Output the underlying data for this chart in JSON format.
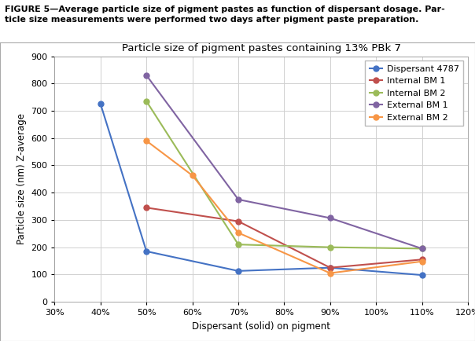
{
  "title": "Particle size of pigment pastes containing 13% PBk 7",
  "xlabel": "Dispersant (solid) on pigment",
  "ylabel": "Particle size (nm) Z-average",
  "caption_line1": "FIGURE 5—Average particle size of pigment pastes as function of dispersant dosage. Par-",
  "caption_line2": "ticle size measurements were performed two days after pigment paste preparation.",
  "xlim": [
    0.3,
    1.2
  ],
  "ylim": [
    0,
    900
  ],
  "xticks": [
    0.3,
    0.4,
    0.5,
    0.6,
    0.7,
    0.8,
    0.9,
    1.0,
    1.1,
    1.2
  ],
  "yticks": [
    0,
    100,
    200,
    300,
    400,
    500,
    600,
    700,
    800,
    900
  ],
  "series": [
    {
      "label": "Dispersant 4787",
      "color": "#4472C4",
      "marker": "o",
      "x": [
        0.4,
        0.5,
        0.7,
        0.9,
        1.1
      ],
      "y": [
        725,
        185,
        113,
        125,
        98
      ]
    },
    {
      "label": "Internal BM 1",
      "color": "#C0504D",
      "marker": "o",
      "x": [
        0.5,
        0.7,
        0.9,
        1.1
      ],
      "y": [
        345,
        295,
        125,
        155
      ]
    },
    {
      "label": "Internal BM 2",
      "color": "#9BBB59",
      "marker": "o",
      "x": [
        0.5,
        0.7,
        0.9,
        1.1
      ],
      "y": [
        735,
        210,
        200,
        195
      ]
    },
    {
      "label": "External BM 1",
      "color": "#8064A2",
      "marker": "o",
      "x": [
        0.5,
        0.7,
        0.9,
        1.1
      ],
      "y": [
        830,
        375,
        307,
        195
      ]
    },
    {
      "label": "External BM 2",
      "color": "#F79646",
      "marker": "o",
      "x": [
        0.5,
        0.6,
        0.7,
        0.9,
        1.1
      ],
      "y": [
        590,
        463,
        253,
        105,
        148
      ]
    }
  ],
  "background_color": "#ffffff",
  "plot_bg_color": "#ffffff",
  "grid_color": "#d0d0d0",
  "title_fontsize": 9.5,
  "axis_label_fontsize": 8.5,
  "tick_fontsize": 8,
  "legend_fontsize": 8,
  "caption_fontsize": 8,
  "figure_width": 6.04,
  "figure_height": 4.34
}
